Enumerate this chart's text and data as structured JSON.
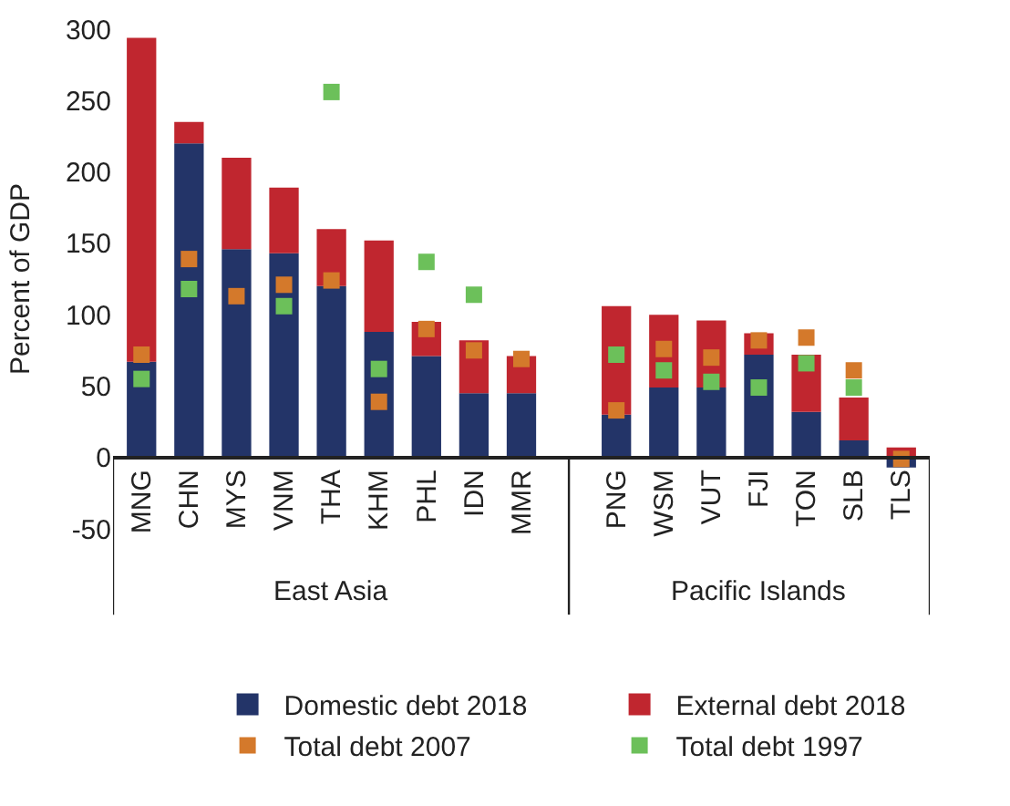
{
  "chart_data": {
    "type": "bar",
    "stacked": true,
    "ylabel": "Percent of GDP",
    "categories": [
      "MNG",
      "CHN",
      "MYS",
      "VNM",
      "THA",
      "KHM",
      "PHL",
      "IDN",
      "MMR",
      null,
      "PNG",
      "WSM",
      "VUT",
      "FJI",
      "TON",
      "SLB",
      "TLS"
    ],
    "series": [
      {
        "name": "Domestic debt 2018",
        "color": "#233468",
        "values": [
          67,
          220,
          146,
          143,
          120,
          88,
          71,
          45,
          45,
          null,
          30,
          49,
          49,
          72,
          32,
          12,
          -7
        ]
      },
      {
        "name": "External debt 2018",
        "color": "#c0262f",
        "values": [
          227,
          15,
          64,
          46,
          40,
          64,
          24,
          37,
          26,
          null,
          76,
          51,
          47,
          15,
          40,
          30,
          7
        ]
      },
      {
        "name": "Total debt 2007",
        "type": "scatter",
        "color": "#d4792b",
        "values": [
          72,
          139,
          113,
          121,
          124,
          39,
          90,
          75,
          69,
          null,
          33,
          76,
          70,
          82,
          84,
          61,
          -1
        ]
      },
      {
        "name": "Total debt 1997",
        "type": "scatter",
        "color": "#6cc05a",
        "values": [
          55,
          118,
          null,
          106,
          256,
          62,
          137,
          114,
          null,
          null,
          72,
          61,
          53,
          49,
          66,
          49,
          null
        ]
      }
    ],
    "ylim": [
      -50,
      300
    ],
    "yticks": [
      -50,
      0,
      50,
      100,
      150,
      200,
      250,
      300
    ],
    "marker": "square",
    "legend": "bottom",
    "annotations": [
      "East Asia",
      "Pacific Islands"
    ]
  }
}
